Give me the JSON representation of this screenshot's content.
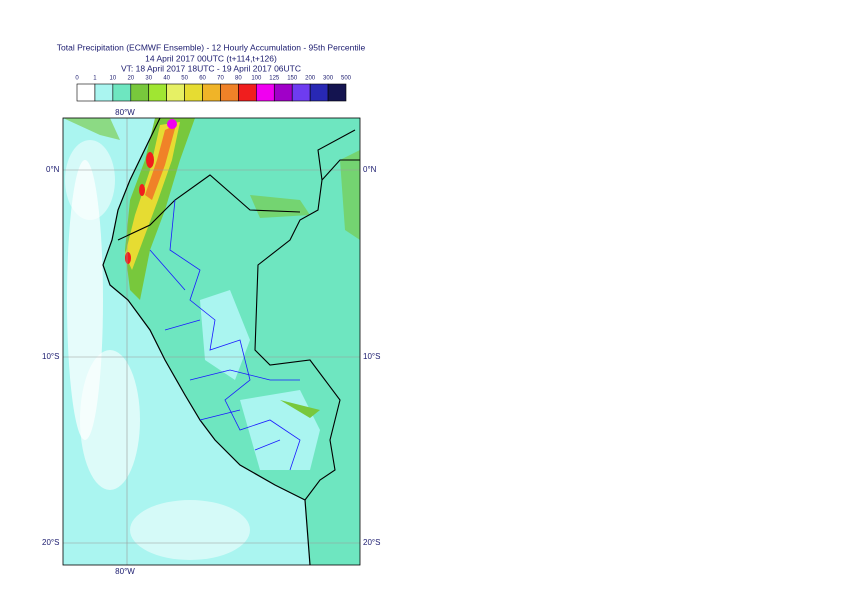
{
  "header": {
    "title": "Total Precipitation (ECMWF Ensemble) - 12 Hourly Accumulation - 95th Percentile",
    "base_time": "14 April 2017 00UTC (t+114,t+126)",
    "valid_time": "VT: 18 April 2017 18UTC - 19 April 2017 06UTC"
  },
  "colorbar": {
    "levels": [
      0,
      1,
      10,
      20,
      30,
      40,
      50,
      60,
      70,
      80,
      100,
      125,
      150,
      200,
      300,
      500
    ],
    "colors": [
      "#ffffff",
      "#aaf5f0",
      "#6ee6c0",
      "#78c83c",
      "#a0e632",
      "#e6f064",
      "#e6dc32",
      "#f0b428",
      "#f08228",
      "#f01e1e",
      "#f000f0",
      "#a000c8",
      "#6e3cf0",
      "#2828b4",
      "#141450"
    ]
  },
  "map": {
    "lon_labels": [
      "80°W"
    ],
    "lat_labels": [
      "0°N",
      "10°S",
      "20°S"
    ]
  }
}
